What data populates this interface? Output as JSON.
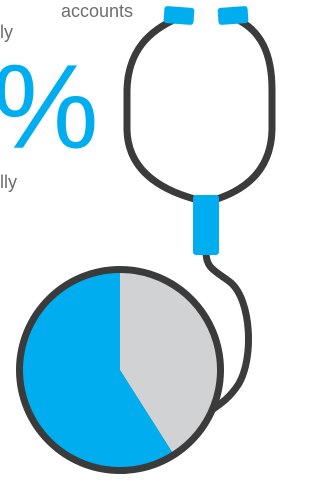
{
  "texts": {
    "line1": "accounts",
    "line2": "ly",
    "percent": "%",
    "line3": "lly"
  },
  "chart_data": {
    "type": "pie",
    "values": [
      41,
      59
    ],
    "colors": [
      "#d1d2d4",
      "#00aeef"
    ]
  }
}
